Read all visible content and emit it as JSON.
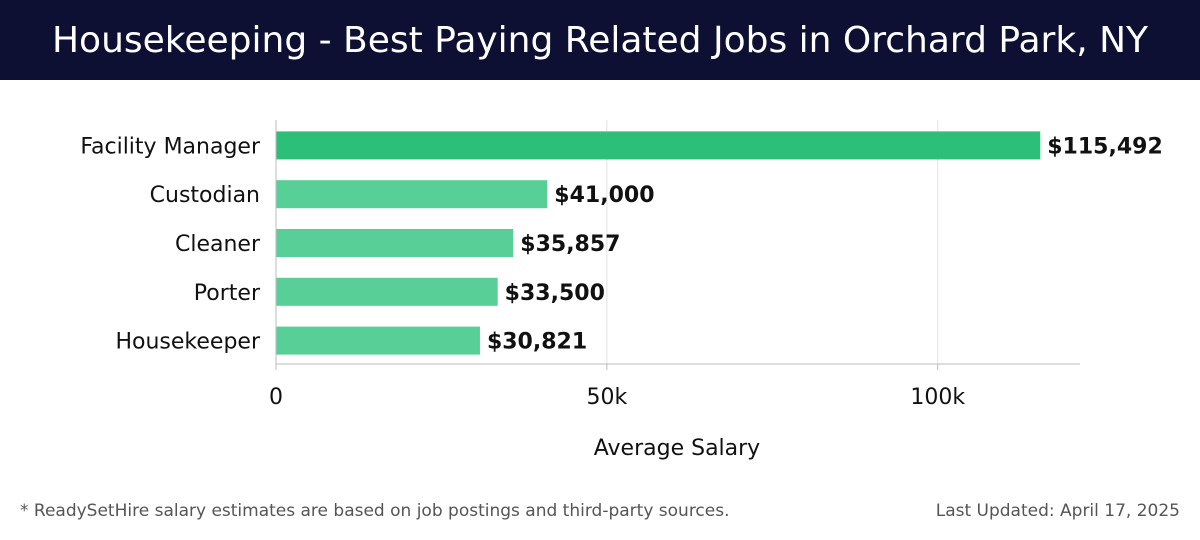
{
  "header": {
    "title": "Housekeeping - Best Paying Related Jobs in Orchard Park, NY"
  },
  "footer": {
    "note": "* ReadySetHire salary estimates are based on job postings and third-party sources.",
    "updated": "Last Updated: April 17, 2025"
  },
  "colors": {
    "header_bg": "#0d0f33",
    "highlight_bar": "#2bbf78",
    "bar": "#57cf96"
  },
  "chart_data": {
    "type": "bar",
    "orientation": "horizontal",
    "categories": [
      "Facility Manager",
      "Custodian",
      "Cleaner",
      "Porter",
      "Housekeeper"
    ],
    "values": [
      115492,
      41000,
      35857,
      33500,
      30821
    ],
    "value_labels": [
      "$115,492",
      "$41,000",
      "$35,857",
      "$33,500",
      "$30,821"
    ],
    "xlabel": "Average Salary",
    "ylabel": "",
    "xlim": [
      0,
      121500
    ],
    "x_ticks": [
      0,
      50000,
      100000
    ],
    "x_tick_labels": [
      "0",
      "50k",
      "100k"
    ],
    "grid": true,
    "legend": "none"
  }
}
